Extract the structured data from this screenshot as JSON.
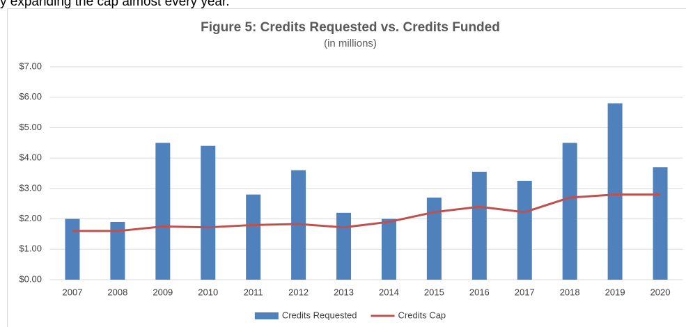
{
  "text": "y expanding the cap almost every year.",
  "chart_data": {
    "type": "bar",
    "title": "Figure 5: Credits Requested vs. Credits Funded",
    "subtitle": "(in millions)",
    "categories": [
      "2007",
      "2008",
      "2009",
      "2010",
      "2011",
      "2012",
      "2013",
      "2014",
      "2015",
      "2016",
      "2017",
      "2018",
      "2019",
      "2020"
    ],
    "series": [
      {
        "name": "Credits Requested",
        "type": "bar",
        "color": "#4f81bd",
        "values": [
          2.0,
          1.9,
          4.5,
          4.4,
          2.8,
          3.6,
          2.2,
          2.0,
          2.7,
          3.55,
          3.25,
          4.5,
          5.8,
          3.7
        ]
      },
      {
        "name": "Credits Cap",
        "type": "line",
        "color": "#c0504d",
        "values": [
          1.6,
          1.6,
          1.75,
          1.72,
          1.8,
          1.83,
          1.72,
          1.9,
          2.22,
          2.4,
          2.22,
          2.7,
          2.8,
          2.8
        ]
      }
    ],
    "ylim": [
      0,
      7
    ],
    "yticks": [
      {
        "value": 0,
        "label": "$0.00"
      },
      {
        "value": 1,
        "label": "$1.00"
      },
      {
        "value": 2,
        "label": "$2.00"
      },
      {
        "value": 3,
        "label": "$3.00"
      },
      {
        "value": 4,
        "label": "$4.00"
      },
      {
        "value": 5,
        "label": "$5.00"
      },
      {
        "value": 6,
        "label": "$6.00"
      },
      {
        "value": 7,
        "label": "$7.00"
      }
    ],
    "grid": true,
    "legend": "bottom"
  }
}
